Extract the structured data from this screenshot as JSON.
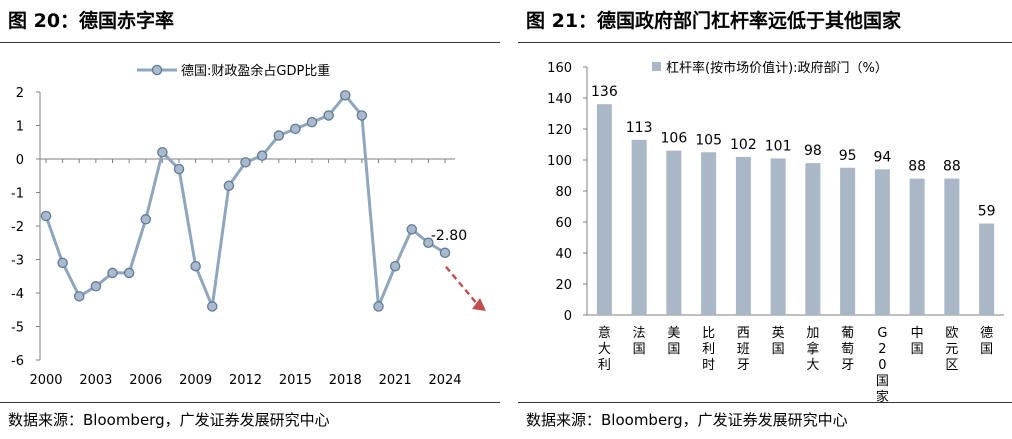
{
  "figure_left": {
    "title": "图 20：德国赤字率",
    "source": "数据来源：Bloomberg，广发证券发展研究中心"
  },
  "figure_right": {
    "title": "图 21：德国政府部门杠杆率远低于其他国家",
    "source": "数据来源：Bloomberg，广发证券发展研究中心"
  },
  "colors": {
    "line": "#8fa6bd",
    "marker_fill": "#aab9cc",
    "marker_stroke": "#5e7a97",
    "bar": "#a9b7c6",
    "trend_arrow": "#c0504d",
    "axis": "#808080"
  },
  "chart_data": [
    {
      "type": "line",
      "title": "",
      "legend_position": "top-center",
      "x": [
        2000,
        2001,
        2002,
        2003,
        2004,
        2005,
        2006,
        2007,
        2008,
        2009,
        2010,
        2011,
        2012,
        2013,
        2014,
        2015,
        2016,
        2017,
        2018,
        2019,
        2020,
        2021,
        2022,
        2023,
        2024
      ],
      "x_tick_labels": [
        "2000",
        "2003",
        "2006",
        "2009",
        "2012",
        "2015",
        "2018",
        "2021",
        "2024"
      ],
      "series": [
        {
          "name": "德国:财政盈余占GDP比重",
          "values": [
            -1.7,
            -3.1,
            -4.1,
            -3.8,
            -3.4,
            -3.4,
            -1.8,
            0.2,
            -0.3,
            -3.2,
            -4.4,
            -0.8,
            -0.1,
            0.1,
            0.7,
            0.9,
            1.1,
            1.3,
            1.9,
            1.3,
            -4.4,
            -3.2,
            -2.1,
            -2.5,
            -2.8
          ]
        }
      ],
      "annotation": "-2.80",
      "ylim": [
        -6,
        2
      ],
      "y_ticks": [
        -6,
        -5,
        -4,
        -3,
        -2,
        -1,
        0,
        1,
        2
      ],
      "grid": false,
      "trend_arrow": "dashed-down-right"
    },
    {
      "type": "bar",
      "title": "",
      "legend_position": "top-center",
      "series": [
        {
          "name": "杠杆率(按市场价值计):政府部门（%）",
          "values": [
            136,
            113,
            106,
            105,
            102,
            101,
            98,
            95,
            94,
            88,
            88,
            59
          ]
        }
      ],
      "categories": [
        "意大利",
        "法国",
        "美国",
        "比利时",
        "西班牙",
        "英国",
        "加拿大",
        "葡萄牙",
        "G20国家",
        "中国",
        "欧元区",
        "德国"
      ],
      "data_labels": [
        "136",
        "113",
        "106",
        "105",
        "102",
        "101",
        "98",
        "95",
        "94",
        "88",
        "88",
        "59"
      ],
      "ylim": [
        0,
        160
      ],
      "y_ticks": [
        0,
        20,
        40,
        60,
        80,
        100,
        120,
        140,
        160
      ],
      "grid": false
    }
  ]
}
